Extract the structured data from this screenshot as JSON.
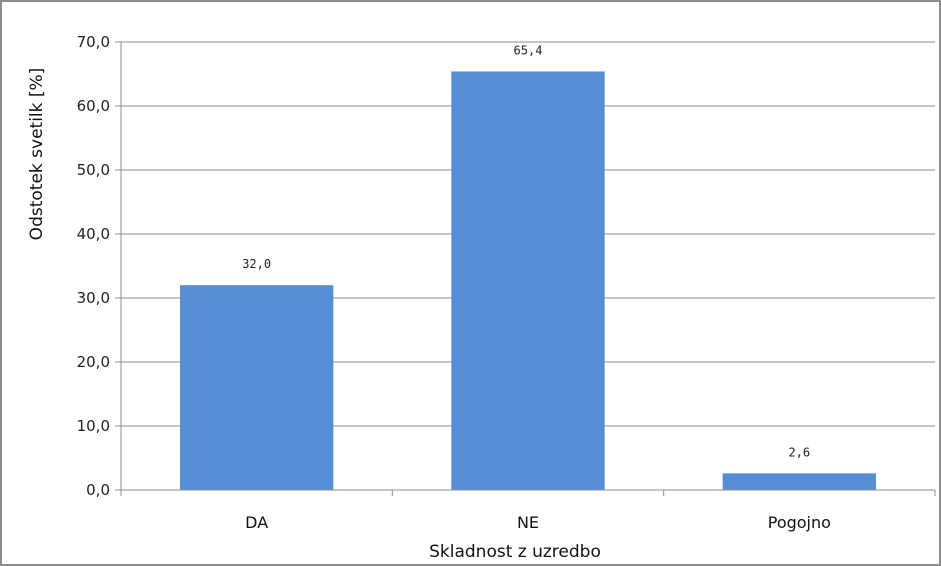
{
  "chart_data": {
    "type": "bar",
    "categories": [
      "DA",
      "NE",
      "Pogojno"
    ],
    "values": [
      32.0,
      65.4,
      2.6
    ],
    "data_labels": [
      "32,0",
      "65,4",
      "2,6"
    ],
    "xlabel": "Skladnost z uzredbo",
    "ylabel": "Odstotek svetilk [%]",
    "ylim": [
      0,
      70
    ],
    "ytick_values": [
      0,
      10,
      20,
      30,
      40,
      50,
      60,
      70
    ],
    "ytick_labels": [
      "0,0",
      "10,0",
      "20,0",
      "30,0",
      "40,0",
      "50,0",
      "60,0",
      "70,0"
    ],
    "grid": true,
    "legend": "none",
    "bar_color": "#558ED5"
  }
}
